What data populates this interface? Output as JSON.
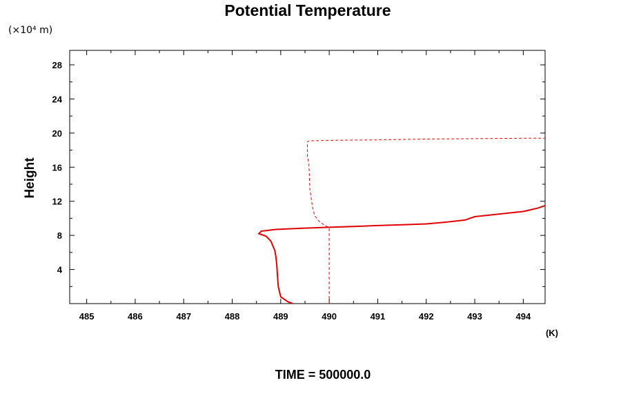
{
  "chart_data": {
    "type": "line",
    "title": "Potential Temperature",
    "y_units_label": "(×10⁴ m)",
    "xlabel": "(K)",
    "ylabel": "Height",
    "footer": "TIME = 500000.0",
    "xlim": [
      484.65,
      494.45
    ],
    "ylim": [
      0,
      29.7
    ],
    "x_ticks": [
      485,
      486,
      487,
      488,
      489,
      490,
      491,
      492,
      493,
      494
    ],
    "x_tick_labels": [
      "485",
      "486",
      "487",
      "488",
      "489",
      "490",
      "491",
      "492",
      "493",
      "494"
    ],
    "y_ticks": [
      4,
      8,
      12,
      16,
      20,
      24,
      28
    ],
    "y_tick_labels": [
      "4",
      "8",
      "12",
      "16",
      "20",
      "24",
      "28"
    ],
    "grid": false,
    "series": [
      {
        "style": "solid",
        "color": "#e00000",
        "x": [
          489.25,
          489.15,
          489.0,
          488.95,
          488.93,
          488.92,
          488.9,
          488.88,
          488.85,
          488.82,
          488.8,
          488.75,
          488.7,
          488.55,
          488.6,
          488.9,
          489.5,
          490.0,
          490.5,
          491.0,
          491.5,
          492.0,
          492.4,
          492.8,
          492.9,
          493.0,
          493.5,
          494.0,
          494.3,
          494.45
        ],
        "y": [
          0.0,
          0.2,
          0.8,
          2.0,
          3.5,
          4.5,
          5.5,
          6.2,
          6.6,
          7.0,
          7.3,
          7.6,
          7.9,
          8.2,
          8.5,
          8.7,
          8.85,
          8.95,
          9.05,
          9.15,
          9.25,
          9.35,
          9.55,
          9.8,
          10.0,
          10.2,
          10.5,
          10.8,
          11.2,
          11.5
        ]
      },
      {
        "style": "dashed",
        "color": "#e00000",
        "x": [
          490.0,
          490.0,
          489.9,
          489.8,
          489.7,
          489.65,
          489.6,
          489.58,
          489.55,
          489.55,
          489.6,
          490.0,
          491.0,
          492.0,
          493.0,
          494.0,
          494.45
        ],
        "y": [
          0.0,
          8.9,
          9.2,
          9.6,
          10.3,
          11.5,
          13.5,
          16.5,
          17.3,
          19.0,
          19.1,
          19.15,
          19.2,
          19.3,
          19.35,
          19.4,
          19.4
        ]
      }
    ]
  }
}
